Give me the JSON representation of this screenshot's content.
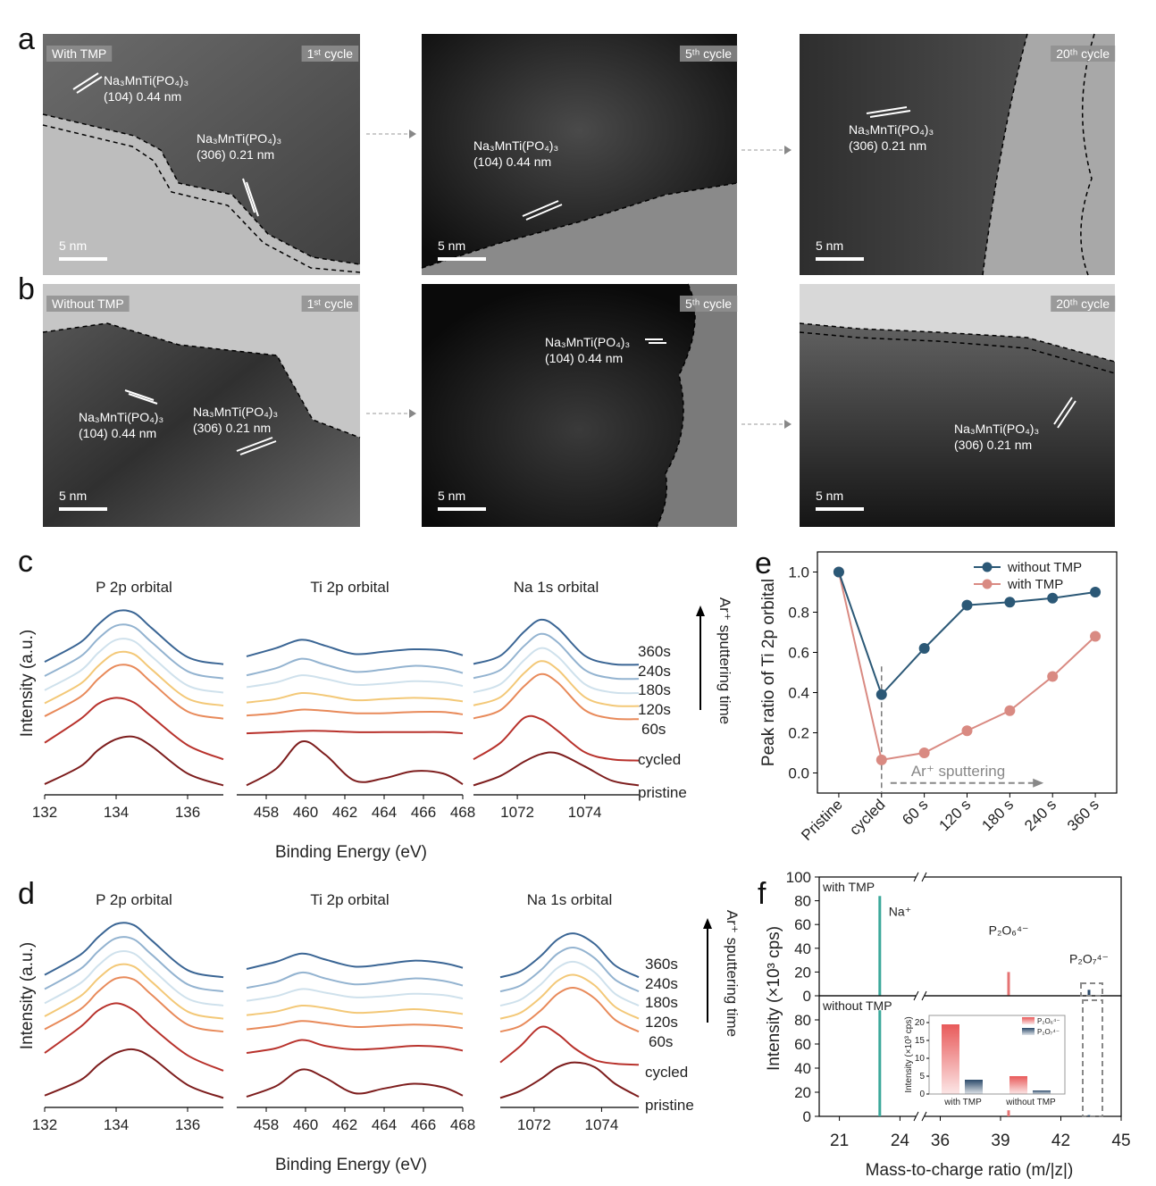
{
  "panel_labels": [
    "a",
    "b",
    "c",
    "d",
    "e",
    "f"
  ],
  "tem": [
    {
      "condition": "With TMP",
      "images": [
        {
          "cycle": "1ˢᵗ cycle",
          "scale_bar": "5 nm",
          "annotations": [
            {
              "phase": "Na₃MnTi(PO₄)₃",
              "fringe": "(104) 0.44 nm"
            },
            {
              "phase": "Na₃MnTi(PO₄)₃",
              "fringe": "(306) 0.21 nm"
            }
          ]
        },
        {
          "cycle": "5ᵗʰ cycle",
          "scale_bar": "5 nm",
          "annotations": [
            {
              "phase": "Na₃MnTi(PO₄)₃",
              "fringe": "(104) 0.44 nm"
            }
          ]
        },
        {
          "cycle": "20ᵗʰ cycle",
          "scale_bar": "5 nm",
          "annotations": [
            {
              "phase": "Na₃MnTi(PO₄)₃",
              "fringe": "(306) 0.21 nm"
            }
          ]
        }
      ]
    },
    {
      "condition": "Without TMP",
      "images": [
        {
          "cycle": "1ˢᵗ cycle",
          "scale_bar": "5 nm",
          "annotations": [
            {
              "phase": "Na₃MnTi(PO₄)₃",
              "fringe": "(104) 0.44 nm"
            },
            {
              "phase": "Na₃MnTi(PO₄)₃",
              "fringe": "(306) 0.21 nm"
            }
          ]
        },
        {
          "cycle": "5ᵗʰ cycle",
          "scale_bar": "5 nm",
          "annotations": [
            {
              "phase": "Na₃MnTi(PO₄)₃",
              "fringe": "(104) 0.44 nm"
            }
          ]
        },
        {
          "cycle": "20ᵗʰ cycle",
          "scale_bar": "5 nm",
          "annotations": [
            {
              "phase": "Na₃MnTi(PO₄)₃",
              "fringe": "(306) 0.21 nm"
            }
          ]
        }
      ]
    }
  ],
  "chart_data": [
    {
      "type": "spectra",
      "ylabel": "Intensity (a.u.)",
      "xlabel": "Binding Energy (eV)",
      "annotation": "Ar⁺ sputtering time",
      "ylim": [
        0,
        10
      ],
      "series": [
        {
          "name": "360s",
          "color": "#3a6594"
        },
        {
          "name": "240s",
          "color": "#93b3d0"
        },
        {
          "name": "180s",
          "color": "#cfe1ec"
        },
        {
          "name": "120s",
          "color": "#f3c877"
        },
        {
          "name": "60s",
          "color": "#e88a5a"
        },
        {
          "name": "cycled",
          "color": "#b8322c"
        },
        {
          "name": "pristine",
          "color": "#7d1d1d"
        }
      ],
      "panels": [
        {
          "title": "P 2p orbital",
          "xlim": [
            132,
            137
          ],
          "xticks": [
            132,
            134,
            136
          ],
          "x": [
            132,
            133,
            133.5,
            134,
            134.5,
            135,
            136,
            137
          ],
          "curves": [
            [
              5.62,
              6.44,
              7.2,
              7.75,
              7.69,
              7.04,
              5.82,
              5.52
            ],
            [
              5.02,
              5.84,
              6.6,
              7.15,
              7.09,
              6.44,
              5.22,
              4.92
            ],
            [
              4.42,
              5.24,
              6.0,
              6.55,
              6.49,
              5.84,
              4.62,
              4.32
            ],
            [
              3.87,
              4.69,
              5.45,
              6.0,
              5.94,
              5.29,
              4.07,
              3.77
            ],
            [
              3.32,
              4.14,
              4.9,
              5.45,
              5.39,
              4.74,
              3.52,
              3.22
            ],
            [
              2.2,
              3.2,
              3.85,
              4.1,
              3.9,
              3.3,
              2.1,
              1.5
            ],
            [
              0.45,
              1.2,
              1.9,
              2.35,
              2.45,
              2.05,
              0.9,
              0.4
            ]
          ]
        },
        {
          "title": "Ti 2p orbital",
          "xlim": [
            456.5,
            468
          ],
          "xticks": [
            458,
            460,
            462,
            464,
            466,
            468
          ],
          "x": [
            457,
            458.5,
            459.8,
            461,
            462.5,
            464,
            465.5,
            467,
            468
          ],
          "curves": [
            [
              5.85,
              6.2,
              6.55,
              6.3,
              5.95,
              6.05,
              6.15,
              6.1,
              5.9
            ],
            [
              5.05,
              5.35,
              5.75,
              5.5,
              5.2,
              5.3,
              5.45,
              5.35,
              5.15
            ],
            [
              4.55,
              4.75,
              5.05,
              4.9,
              4.65,
              4.7,
              4.8,
              4.75,
              4.6
            ],
            [
              3.9,
              4.05,
              4.3,
              4.2,
              4.0,
              4.05,
              4.1,
              4.05,
              3.95
            ],
            [
              3.35,
              3.45,
              3.6,
              3.55,
              3.45,
              3.45,
              3.5,
              3.5,
              3.4
            ],
            [
              2.6,
              2.65,
              2.7,
              2.7,
              2.65,
              2.65,
              2.65,
              2.65,
              2.6
            ],
            [
              0.4,
              1.1,
              2.25,
              1.7,
              0.6,
              0.7,
              1.0,
              0.9,
              0.45
            ]
          ]
        },
        {
          "title": "Na 1s orbital",
          "xlim": [
            1070.7,
            1075.6
          ],
          "xticks": [
            1072,
            1074
          ],
          "x": [
            1070.7,
            1071.5,
            1072.2,
            1072.7,
            1073.2,
            1074,
            1074.8,
            1075.6
          ],
          "curves": [
            [
              5.53,
              5.88,
              6.89,
              7.4,
              7.04,
              5.88,
              5.53,
              5.5
            ],
            [
              4.93,
              5.28,
              6.29,
              6.8,
              6.44,
              5.28,
              4.93,
              4.9
            ],
            [
              4.33,
              4.68,
              5.69,
              6.2,
              5.84,
              4.68,
              4.33,
              4.3
            ],
            [
              3.78,
              4.13,
              5.14,
              5.65,
              5.29,
              4.13,
              3.78,
              3.75
            ],
            [
              3.23,
              3.58,
              4.59,
              5.1,
              4.74,
              3.58,
              3.23,
              3.2
            ],
            [
              1.5,
              2.2,
              3.25,
              3.2,
              2.7,
              1.8,
              1.5,
              1.45
            ],
            [
              0.4,
              0.8,
              1.4,
              1.72,
              1.75,
              1.2,
              0.6,
              0.4
            ]
          ]
        }
      ]
    },
    {
      "type": "spectra",
      "ylabel": "Intensity (a.u.)",
      "xlabel": "Binding Energy (eV)",
      "annotation": "Ar⁺ sputtering time",
      "ylim": [
        0,
        10
      ],
      "series": [
        {
          "name": "360s",
          "color": "#3a6594"
        },
        {
          "name": "240s",
          "color": "#93b3d0"
        },
        {
          "name": "180s",
          "color": "#cfe1ec"
        },
        {
          "name": "120s",
          "color": "#f3c877"
        },
        {
          "name": "60s",
          "color": "#e88a5a"
        },
        {
          "name": "cycled",
          "color": "#b8322c"
        },
        {
          "name": "pristine",
          "color": "#7d1d1d"
        }
      ],
      "panels": [
        {
          "title": "P 2p orbital",
          "xlim": [
            132,
            137
          ],
          "xticks": [
            132,
            134,
            136
          ],
          "x": [
            132,
            133,
            133.5,
            134,
            134.5,
            135,
            136,
            137
          ],
          "curves": [
            [
              5.6,
              6.45,
              7.2,
              7.75,
              7.7,
              7.05,
              5.8,
              5.5
            ],
            [
              5.0,
              5.85,
              6.6,
              7.15,
              7.1,
              6.45,
              5.2,
              4.9
            ],
            [
              4.4,
              5.25,
              6.0,
              6.55,
              6.5,
              5.85,
              4.6,
              4.3
            ],
            [
              3.85,
              4.7,
              5.45,
              6.0,
              5.95,
              5.3,
              4.05,
              3.75
            ],
            [
              3.3,
              4.15,
              4.9,
              5.45,
              5.4,
              4.75,
              3.5,
              3.2
            ],
            [
              2.3,
              3.4,
              4.1,
              4.4,
              4.1,
              3.4,
              2.2,
              1.55
            ],
            [
              0.5,
              1.15,
              1.8,
              2.3,
              2.45,
              2.1,
              0.95,
              0.4
            ]
          ]
        },
        {
          "title": "Ti 2p orbital",
          "xlim": [
            456.5,
            468
          ],
          "xticks": [
            458,
            460,
            462,
            464,
            466,
            468
          ],
          "x": [
            457,
            458.5,
            459.8,
            461,
            462.5,
            464,
            465.5,
            467,
            468
          ],
          "curves": [
            [
              5.85,
              6.15,
              6.5,
              6.25,
              5.95,
              6.05,
              6.2,
              6.1,
              5.9
            ],
            [
              5.05,
              5.3,
              5.7,
              5.45,
              5.2,
              5.3,
              5.45,
              5.35,
              5.15
            ],
            [
              4.5,
              4.7,
              5.0,
              4.85,
              4.65,
              4.7,
              4.8,
              4.75,
              4.6
            ],
            [
              3.9,
              4.05,
              4.3,
              4.2,
              4.0,
              4.05,
              4.15,
              4.05,
              3.95
            ],
            [
              3.3,
              3.45,
              3.65,
              3.55,
              3.4,
              3.45,
              3.5,
              3.45,
              3.35
            ],
            [
              2.3,
              2.5,
              2.85,
              2.6,
              2.45,
              2.5,
              2.6,
              2.55,
              2.4
            ],
            [
              0.45,
              0.9,
              1.6,
              1.25,
              0.6,
              0.8,
              1.0,
              0.85,
              0.5
            ]
          ]
        },
        {
          "title": "Na 1s orbital",
          "xlim": [
            1071,
            1075.1
          ],
          "xticks": [
            1072,
            1074
          ],
          "x": [
            1071,
            1071.6,
            1072.2,
            1072.7,
            1073.2,
            1073.8,
            1074.4,
            1075.1
          ],
          "curves": [
            [
              5.5,
              5.75,
              6.4,
              7.1,
              7.35,
              6.9,
              6.0,
              5.5
            ],
            [
              4.9,
              5.15,
              5.8,
              6.5,
              6.75,
              6.3,
              5.4,
              4.9
            ],
            [
              4.3,
              4.55,
              5.2,
              5.9,
              6.15,
              5.7,
              4.8,
              4.3
            ],
            [
              3.75,
              4.0,
              4.65,
              5.35,
              5.6,
              5.15,
              4.25,
              3.75
            ],
            [
              3.2,
              3.45,
              4.1,
              4.8,
              5.05,
              4.6,
              3.7,
              3.2
            ],
            [
              1.9,
              2.6,
              3.4,
              3.1,
              2.5,
              2.0,
              1.85,
              1.8
            ],
            [
              0.4,
              0.7,
              1.2,
              1.7,
              1.9,
              1.7,
              1.0,
              0.45
            ]
          ]
        }
      ]
    },
    {
      "type": "line",
      "ylabel": "Peak ratio of Ti 2p orbital",
      "annotation": "Ar⁺ sputtering",
      "categories": [
        "Pristine",
        "cycled",
        "60 s",
        "120 s",
        "180 s",
        "240 s",
        "360 s"
      ],
      "ylim": [
        -0.1,
        1.1
      ],
      "yticks": [
        {
          "value": 0,
          "label": "0.0"
        },
        0.2,
        0.4,
        0.6,
        0.8,
        {
          "value": 1,
          "label": "1.0"
        }
      ],
      "legend": "top-right",
      "series": [
        {
          "name": "without TMP",
          "color": "#2b5876",
          "values": [
            1.0,
            0.39,
            0.62,
            0.835,
            0.85,
            0.87,
            0.9
          ]
        },
        {
          "name": "with TMP",
          "color": "#d98a82",
          "values": [
            1.0,
            0.065,
            0.1,
            0.21,
            0.31,
            0.48,
            0.68
          ]
        }
      ]
    },
    {
      "type": "stem",
      "ylabel": "Intensity (×10³ cps)",
      "xlabel": "Mass-to-charge ratio (m/|z|)",
      "xlim": [
        20,
        45
      ],
      "x_break": [
        25,
        35
      ],
      "xticks": [
        21,
        24,
        36,
        39,
        42,
        45
      ],
      "peaks": [
        {
          "name": "Na⁺",
          "x": 23,
          "color": "#3aa89a"
        },
        {
          "name": "P₂O₆⁴⁻",
          "x": 39.4,
          "color": "#e57373"
        },
        {
          "name": "P₂O₇⁴⁻",
          "x": 43.4,
          "color": "#2c4a6a"
        }
      ],
      "panels": [
        {
          "name": "with TMP",
          "values": [
            84,
            20,
            5
          ],
          "ylim": [
            0,
            100
          ],
          "yticks": [
            0,
            20,
            40,
            60,
            80,
            100
          ]
        },
        {
          "name": "without TMP",
          "values": [
            88,
            5,
            1
          ],
          "ylim": [
            0,
            100
          ],
          "yticks": [
            0,
            20,
            40,
            60,
            80
          ]
        }
      ]
    },
    {
      "type": "bar",
      "ylabel": "Intensity (×10³ cps)",
      "categories": [
        "with TMP",
        "without TMP"
      ],
      "ylim": [
        0,
        22
      ],
      "yticks": [
        0,
        5,
        10,
        15,
        20
      ],
      "legend": "top-right",
      "series": [
        {
          "name": "P₂O₆⁴⁻",
          "color": "#e85a5a",
          "values": [
            19.5,
            5
          ]
        },
        {
          "name": "P₂O₇⁴⁻",
          "color": "#2c4a6a",
          "values": [
            4,
            1
          ]
        }
      ]
    }
  ]
}
